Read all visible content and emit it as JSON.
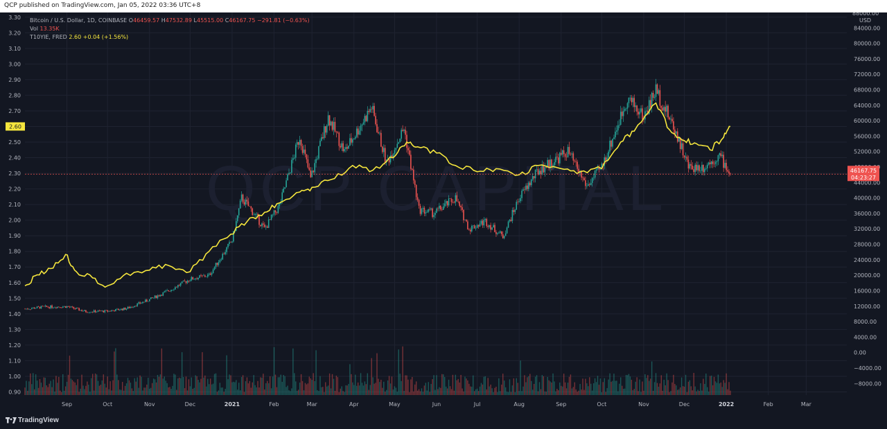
{
  "header": {
    "publish_line": "QCP published on TradingView.com, Jan 05, 2022 03:36 UTC+8"
  },
  "legend": {
    "symbol": "Bitcoin / U.S. Dollar, 1D, COINBASE",
    "open_label": "O",
    "open": "46459.57",
    "high_label": "H",
    "high": "47532.89",
    "low_label": "L",
    "low": "45515.00",
    "close_label": "C",
    "close": "46167.75",
    "change": "−291.81 (−0.63%)",
    "vol_label": "Vol",
    "vol": "13.35K",
    "t10_label": "T10YIE, FRED",
    "t10_value": "2.60",
    "t10_change": "+0.04 (+1.56%)"
  },
  "watermark": "QCP CAPITAL",
  "footer": {
    "brand": "TradingView"
  },
  "colors": {
    "background": "#131722",
    "up": "#26a69a",
    "down": "#ef5350",
    "t10yie_line": "#f5e63d",
    "grid": "#1f2331"
  },
  "chart_data": {
    "type": "line",
    "left_axis": {
      "ticks": [
        "3.30",
        "3.20",
        "3.10",
        "3.00",
        "2.90",
        "2.80",
        "2.70",
        "2.60",
        "2.50",
        "2.40",
        "2.30",
        "2.20",
        "2.10",
        "2.00",
        "1.90",
        "1.80",
        "1.70",
        "1.60",
        "1.50",
        "1.40",
        "1.30",
        "1.20",
        "1.10",
        "1.00",
        "0.90"
      ],
      "ylim": [
        0.88,
        3.33
      ],
      "current_label": "2.60",
      "current": 2.6
    },
    "right_axis": {
      "unit": "USD",
      "top_label": "88000.00",
      "ticks": [
        "84000.00",
        "80000.00",
        "76000.00",
        "72000.00",
        "68000.00",
        "64000.00",
        "60000.00",
        "56000.00",
        "52000.00",
        "48000.00",
        "44000.00",
        "40000.00",
        "36000.00",
        "32000.00",
        "28000.00",
        "24000.00",
        "20000.00",
        "16000.00",
        "12000.00",
        "8000.00",
        "4000.00",
        "0.00",
        "−4000.00",
        "−8000.00"
      ],
      "ylim": [
        -11000,
        88000
      ],
      "price_tag": "46167.75",
      "countdown": "04:23:27",
      "current_price": 46167.75
    },
    "x_axis": {
      "labels": [
        "Sep",
        "Oct",
        "Nov",
        "Dec",
        "2021",
        "Feb",
        "Mar",
        "Apr",
        "May",
        "Jun",
        "Jul",
        "Aug",
        "Sep",
        "Oct",
        "Nov",
        "Dec",
        "2022",
        "Feb",
        "Mar"
      ],
      "start": "2020-08-01",
      "end": "2022-03-31"
    },
    "series": [
      {
        "name": "Bitcoin / U.S. Dollar, 1D, COINBASE",
        "style": "candles",
        "points": [
          [
            "2020-08-01",
            11300
          ],
          [
            "2020-08-15",
            11800
          ],
          [
            "2020-09-01",
            11900
          ],
          [
            "2020-09-15",
            10600
          ],
          [
            "2020-10-01",
            10700
          ],
          [
            "2020-10-15",
            11400
          ],
          [
            "2020-11-01",
            13700
          ],
          [
            "2020-11-15",
            16000
          ],
          [
            "2020-12-01",
            19000
          ],
          [
            "2020-12-15",
            20000
          ],
          [
            "2021-01-01",
            29000
          ],
          [
            "2021-01-08",
            40000
          ],
          [
            "2021-01-15",
            37000
          ],
          [
            "2021-01-25",
            32000
          ],
          [
            "2021-02-05",
            38000
          ],
          [
            "2021-02-20",
            56000
          ],
          [
            "2021-02-28",
            45000
          ],
          [
            "2021-03-13",
            61000
          ],
          [
            "2021-03-25",
            52000
          ],
          [
            "2021-04-14",
            63500
          ],
          [
            "2021-04-25",
            49000
          ],
          [
            "2021-05-08",
            58000
          ],
          [
            "2021-05-19",
            37000
          ],
          [
            "2021-05-30",
            36000
          ],
          [
            "2021-06-15",
            40000
          ],
          [
            "2021-06-25",
            32000
          ],
          [
            "2021-07-07",
            34000
          ],
          [
            "2021-07-20",
            30000
          ],
          [
            "2021-08-01",
            40000
          ],
          [
            "2021-08-15",
            47000
          ],
          [
            "2021-09-06",
            52000
          ],
          [
            "2021-09-20",
            43000
          ],
          [
            "2021-10-01",
            48000
          ],
          [
            "2021-10-15",
            61000
          ],
          [
            "2021-10-20",
            66000
          ],
          [
            "2021-11-01",
            61000
          ],
          [
            "2021-11-10",
            68000
          ],
          [
            "2021-11-25",
            57000
          ],
          [
            "2021-12-04",
            48000
          ],
          [
            "2021-12-15",
            48000
          ],
          [
            "2021-12-27",
            51000
          ],
          [
            "2022-01-04",
            46167.75
          ]
        ]
      },
      {
        "name": "T10YIE, FRED",
        "style": "line",
        "points": [
          [
            "2020-08-01",
            1.58
          ],
          [
            "2020-08-10",
            1.65
          ],
          [
            "2020-08-20",
            1.69
          ],
          [
            "2020-08-31",
            1.78
          ],
          [
            "2020-09-08",
            1.67
          ],
          [
            "2020-09-20",
            1.63
          ],
          [
            "2020-10-01",
            1.58
          ],
          [
            "2020-10-15",
            1.66
          ],
          [
            "2020-11-01",
            1.68
          ],
          [
            "2020-11-15",
            1.71
          ],
          [
            "2020-12-01",
            1.67
          ],
          [
            "2020-12-15",
            1.8
          ],
          [
            "2020-12-31",
            1.91
          ],
          [
            "2021-01-12",
            1.99
          ],
          [
            "2021-01-25",
            2.05
          ],
          [
            "2021-02-05",
            2.11
          ],
          [
            "2021-02-20",
            2.18
          ],
          [
            "2021-03-01",
            2.21
          ],
          [
            "2021-03-15",
            2.26
          ],
          [
            "2021-03-31",
            2.35
          ],
          [
            "2021-04-15",
            2.32
          ],
          [
            "2021-04-30",
            2.4
          ],
          [
            "2021-05-10",
            2.5
          ],
          [
            "2021-05-18",
            2.47
          ],
          [
            "2021-06-01",
            2.43
          ],
          [
            "2021-06-15",
            2.35
          ],
          [
            "2021-07-01",
            2.31
          ],
          [
            "2021-07-15",
            2.33
          ],
          [
            "2021-08-01",
            2.29
          ],
          [
            "2021-08-15",
            2.35
          ],
          [
            "2021-09-01",
            2.33
          ],
          [
            "2021-09-15",
            2.31
          ],
          [
            "2021-10-01",
            2.33
          ],
          [
            "2021-10-15",
            2.5
          ],
          [
            "2021-10-25",
            2.57
          ],
          [
            "2021-11-10",
            2.75
          ],
          [
            "2021-11-20",
            2.58
          ],
          [
            "2021-12-01",
            2.51
          ],
          [
            "2021-12-10",
            2.49
          ],
          [
            "2021-12-20",
            2.45
          ],
          [
            "2021-12-30",
            2.53
          ],
          [
            "2022-01-04",
            2.6
          ]
        ]
      }
    ]
  }
}
